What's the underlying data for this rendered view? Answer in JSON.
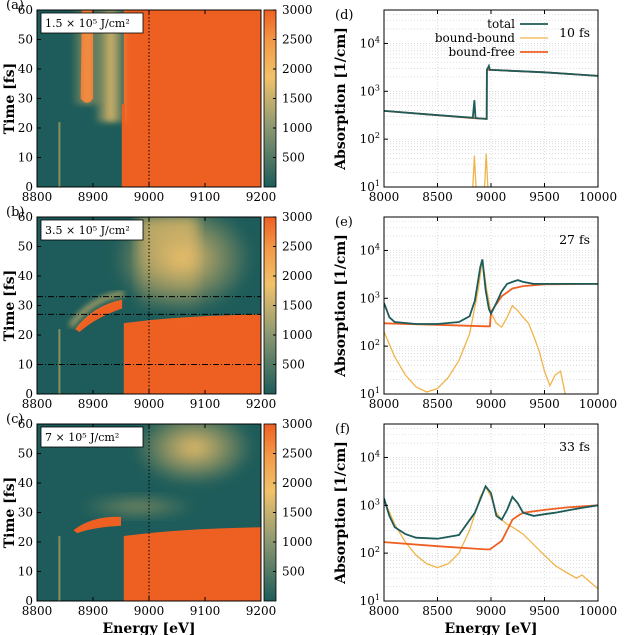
{
  "colors": {
    "teal": "#1d5c5a",
    "orange": "#ee6022",
    "yellow": "#f2c26a",
    "bound_bound": "#f0b44a"
  },
  "chart_data": [
    {
      "panel": "(a)",
      "type": "heatmap",
      "fluence": "1.5 × 10⁵ J/cm²",
      "xlabel": "Energy [eV]",
      "ylabel": "Time [fs]",
      "xlim": [
        8800,
        9200
      ],
      "ylim": [
        0,
        60
      ],
      "xticks": [
        8800,
        8900,
        9000,
        9100,
        9200
      ],
      "yticks": [
        0,
        10,
        20,
        30,
        40,
        50,
        60
      ],
      "colorbar_ticks": [
        500,
        1000,
        1500,
        2000,
        2500,
        3000
      ],
      "colorbar_range": [
        0,
        3000
      ],
      "edge_energy": 9000,
      "dashed_lines": []
    },
    {
      "panel": "(b)",
      "type": "heatmap",
      "fluence": "3.5 × 10⁵ J/cm²",
      "xlabel": "Energy [eV]",
      "ylabel": "Time [fs]",
      "xlim": [
        8800,
        9200
      ],
      "ylim": [
        0,
        60
      ],
      "xticks": [
        8800,
        8900,
        9000,
        9100,
        9200
      ],
      "yticks": [
        0,
        10,
        20,
        30,
        40,
        50,
        60
      ],
      "colorbar_ticks": [
        500,
        1000,
        1500,
        2000,
        2500,
        3000
      ],
      "colorbar_range": [
        0,
        3000
      ],
      "edge_energy": 9000,
      "dashed_lines": [
        10,
        27,
        33
      ]
    },
    {
      "panel": "(c)",
      "type": "heatmap",
      "fluence": "7 × 10⁵ J/cm²",
      "xlabel": "Energy [eV]",
      "ylabel": "Time [fs]",
      "xlim": [
        8800,
        9200
      ],
      "ylim": [
        0,
        60
      ],
      "xticks": [
        8800,
        8900,
        9000,
        9100,
        9200
      ],
      "yticks": [
        0,
        10,
        20,
        30,
        40,
        50,
        60
      ],
      "colorbar_ticks": [
        500,
        1000,
        1500,
        2000,
        2500,
        3000
      ],
      "colorbar_range": [
        0,
        3000
      ],
      "edge_energy": 9000,
      "dashed_lines": []
    },
    {
      "panel": "(d)",
      "type": "line",
      "time_label": "10 fs",
      "xlabel": "Energy [eV]",
      "ylabel": "Absorption [1/cm]",
      "xlim": [
        8000,
        10000
      ],
      "ylim": [
        10,
        50000
      ],
      "yscale": "log",
      "xticks": [
        8000,
        8500,
        9000,
        9500,
        10000
      ],
      "yticks": [
        10,
        100,
        1000,
        10000
      ],
      "legend": [
        "total",
        "bound-bound",
        "bound-free"
      ],
      "legend_position": "top-right",
      "series": [
        {
          "name": "bound-free",
          "x": [
            8000,
            8400,
            8800,
            8960,
            8962,
            9000,
            9500,
            10000
          ],
          "y": [
            390,
            330,
            280,
            265,
            2800,
            2800,
            2500,
            2100
          ]
        },
        {
          "name": "bound-bound",
          "x": [
            8830,
            8845,
            8860,
            8940,
            8955,
            8970
          ],
          "y": [
            10,
            45,
            10,
            10,
            50,
            10
          ]
        },
        {
          "name": "total",
          "x": [
            8000,
            8400,
            8830,
            8845,
            8855,
            8955,
            8960,
            8962,
            8980,
            8990,
            9000,
            9500,
            10000
          ],
          "y": [
            390,
            330,
            280,
            650,
            275,
            265,
            265,
            2800,
            3400,
            2800,
            2800,
            2500,
            2100
          ]
        }
      ]
    },
    {
      "panel": "(e)",
      "type": "line",
      "time_label": "27 fs",
      "xlabel": "Energy [eV]",
      "ylabel": "Absorption [1/cm]",
      "xlim": [
        8000,
        10000
      ],
      "ylim": [
        10,
        50000
      ],
      "yscale": "log",
      "xticks": [
        8000,
        8500,
        9000,
        9500,
        10000
      ],
      "yticks": [
        10,
        100,
        1000,
        10000
      ],
      "series": [
        {
          "name": "bound-free",
          "x": [
            8000,
            8500,
            8950,
            8990,
            9000,
            9100,
            9200,
            9300,
            9500,
            10000
          ],
          "y": [
            300,
            280,
            260,
            260,
            520,
            1100,
            1600,
            1800,
            1950,
            2000
          ]
        },
        {
          "name": "bound-bound",
          "x": [
            8000,
            8100,
            8200,
            8300,
            8400,
            8500,
            8600,
            8700,
            8800,
            8880,
            8920,
            8960,
            9000,
            9050,
            9100,
            9150,
            9200,
            9250,
            9300,
            9350,
            9400,
            9450,
            9500,
            9550,
            9600,
            9650,
            9680,
            9700
          ],
          "y": [
            200,
            60,
            25,
            14,
            11,
            13,
            22,
            50,
            180,
            1500,
            6500,
            1500,
            500,
            300,
            250,
            400,
            700,
            550,
            400,
            300,
            160,
            80,
            30,
            15,
            25,
            30,
            14,
            8
          ]
        },
        {
          "name": "total",
          "x": [
            8000,
            8050,
            8100,
            8300,
            8500,
            8700,
            8800,
            8850,
            8900,
            8920,
            8950,
            8980,
            9000,
            9050,
            9100,
            9150,
            9200,
            9250,
            9300,
            9400,
            9500,
            9700,
            10000
          ],
          "y": [
            800,
            400,
            320,
            290,
            290,
            320,
            420,
            900,
            4500,
            6500,
            1500,
            600,
            480,
            800,
            1400,
            2000,
            2200,
            2400,
            2200,
            2000,
            2000,
            2000,
            2000
          ]
        }
      ]
    },
    {
      "panel": "(f)",
      "type": "line",
      "time_label": "33 fs",
      "xlabel": "Energy [eV]",
      "ylabel": "Absorption [1/cm]",
      "xlim": [
        8000,
        10000
      ],
      "ylim": [
        10,
        50000
      ],
      "yscale": "log",
      "xticks": [
        8000,
        8500,
        9000,
        9500,
        10000
      ],
      "yticks": [
        10,
        100,
        1000,
        10000
      ],
      "series": [
        {
          "name": "bound-free",
          "x": [
            8000,
            8500,
            8950,
            8990,
            9050,
            9100,
            9150,
            9200,
            9250,
            9300,
            9500,
            9700,
            10000
          ],
          "y": [
            170,
            140,
            120,
            120,
            150,
            180,
            300,
            500,
            600,
            700,
            800,
            900,
            1000
          ]
        },
        {
          "name": "bound-bound",
          "x": [
            8000,
            8100,
            8200,
            8300,
            8400,
            8500,
            8600,
            8700,
            8800,
            8900,
            8950,
            9000,
            9050,
            9100,
            9150,
            9200,
            9300,
            9400,
            9500,
            9600,
            9700,
            9800,
            9850,
            9900,
            10000
          ],
          "y": [
            1300,
            400,
            170,
            90,
            60,
            50,
            60,
            100,
            300,
            1500,
            2500,
            1500,
            700,
            500,
            400,
            350,
            250,
            150,
            90,
            55,
            40,
            30,
            35,
            28,
            18
          ]
        },
        {
          "name": "total",
          "x": [
            8000,
            8050,
            8100,
            8200,
            8300,
            8500,
            8700,
            8850,
            8950,
            9000,
            9050,
            9100,
            9150,
            9200,
            9250,
            9300,
            9400,
            9500,
            9600,
            9800,
            10000
          ],
          "y": [
            1400,
            600,
            350,
            250,
            210,
            200,
            240,
            700,
            2500,
            1800,
            600,
            500,
            800,
            1500,
            1100,
            700,
            600,
            650,
            700,
            850,
            1000
          ]
        }
      ]
    }
  ]
}
